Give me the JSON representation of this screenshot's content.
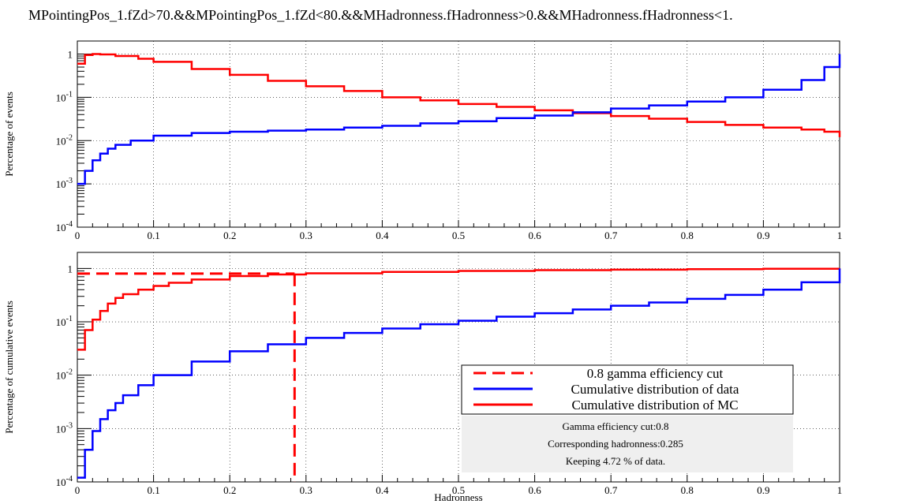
{
  "title": "MPointingPos_1.fZd>70.&&MPointingPos_1.fZd<80.&&MHadronness.fHadronness>0.&&MHadronness.fHadronness<1.",
  "chart_data": [
    {
      "type": "line",
      "ylabel": "Percentage of events",
      "xlim": [
        0,
        1
      ],
      "ylim": [
        0.0001,
        2
      ],
      "yscale": "log",
      "grid": true,
      "x_ticks": [
        "0",
        "0.1",
        "0.2",
        "0.3",
        "0.4",
        "0.5",
        "0.6",
        "0.7",
        "0.8",
        "0.9",
        "1"
      ],
      "y_ticks": [
        "10^-4",
        "10^-3",
        "10^-2",
        "10^-1",
        "1"
      ],
      "series": [
        {
          "color": "#ff0000",
          "x": [
            0,
            0.01,
            0.02,
            0.03,
            0.05,
            0.08,
            0.1,
            0.15,
            0.2,
            0.25,
            0.3,
            0.35,
            0.4,
            0.45,
            0.5,
            0.55,
            0.6,
            0.65,
            0.7,
            0.75,
            0.8,
            0.85,
            0.9,
            0.95,
            0.98,
            1.0
          ],
          "y": [
            0.6,
            0.95,
            1.0,
            0.98,
            0.9,
            0.78,
            0.66,
            0.45,
            0.33,
            0.24,
            0.18,
            0.14,
            0.1,
            0.085,
            0.07,
            0.06,
            0.05,
            0.043,
            0.037,
            0.032,
            0.027,
            0.023,
            0.02,
            0.018,
            0.016,
            0.012
          ]
        },
        {
          "color": "#0000ff",
          "x": [
            0,
            0.01,
            0.02,
            0.03,
            0.04,
            0.05,
            0.07,
            0.1,
            0.15,
            0.2,
            0.25,
            0.3,
            0.35,
            0.4,
            0.45,
            0.5,
            0.55,
            0.6,
            0.65,
            0.7,
            0.75,
            0.8,
            0.85,
            0.9,
            0.95,
            0.98,
            1.0
          ],
          "y": [
            0.001,
            0.002,
            0.0035,
            0.005,
            0.0065,
            0.008,
            0.01,
            0.013,
            0.015,
            0.016,
            0.017,
            0.018,
            0.02,
            0.022,
            0.025,
            0.028,
            0.033,
            0.038,
            0.045,
            0.055,
            0.065,
            0.08,
            0.1,
            0.15,
            0.25,
            0.5,
            1.0
          ]
        }
      ]
    },
    {
      "type": "line",
      "xlabel": "Hadronness",
      "ylabel": "Percentage of cumulative events",
      "xlim": [
        0,
        1
      ],
      "ylim": [
        0.0001,
        2
      ],
      "yscale": "log",
      "grid": true,
      "x_ticks": [
        "0",
        "0.1",
        "0.2",
        "0.3",
        "0.4",
        "0.5",
        "0.6",
        "0.7",
        "0.8",
        "0.9",
        "1"
      ],
      "y_ticks": [
        "10^-4",
        "10^-3",
        "10^-2",
        "10^-1",
        "1"
      ],
      "series": [
        {
          "name": "Cumulative distribution of MC",
          "color": "#ff0000",
          "x": [
            0,
            0.01,
            0.02,
            0.03,
            0.04,
            0.05,
            0.06,
            0.08,
            0.1,
            0.12,
            0.15,
            0.2,
            0.25,
            0.3,
            0.4,
            0.5,
            0.6,
            0.7,
            0.8,
            0.9,
            1.0
          ],
          "y": [
            0.03,
            0.07,
            0.11,
            0.16,
            0.22,
            0.28,
            0.33,
            0.4,
            0.47,
            0.54,
            0.62,
            0.72,
            0.77,
            0.81,
            0.86,
            0.9,
            0.93,
            0.95,
            0.97,
            0.985,
            1.0
          ]
        },
        {
          "name": "Cumulative distribution of data",
          "color": "#0000ff",
          "x": [
            0,
            0.01,
            0.02,
            0.03,
            0.04,
            0.05,
            0.06,
            0.08,
            0.1,
            0.15,
            0.2,
            0.25,
            0.3,
            0.35,
            0.4,
            0.45,
            0.5,
            0.55,
            0.6,
            0.65,
            0.7,
            0.75,
            0.8,
            0.85,
            0.9,
            0.95,
            1.0
          ],
          "y": [
            0.00012,
            0.0004,
            0.0009,
            0.0015,
            0.0022,
            0.003,
            0.0042,
            0.0065,
            0.01,
            0.018,
            0.028,
            0.038,
            0.05,
            0.062,
            0.075,
            0.09,
            0.105,
            0.125,
            0.145,
            0.17,
            0.2,
            0.23,
            0.27,
            0.32,
            0.4,
            0.55,
            1.0
          ]
        },
        {
          "name": "0.8 gamma efficiency cut",
          "color": "#ff0000",
          "dashed": true,
          "cut_x": 0.285,
          "cut_y": 0.8
        }
      ],
      "legend": {
        "placement": "lower-right",
        "entries": [
          {
            "label": "0.8 gamma efficiency cut",
            "color": "#ff0000",
            "dashed": true
          },
          {
            "label": "Cumulative distribution of data",
            "color": "#0000ff",
            "dashed": false
          },
          {
            "label": "Cumulative distribution of MC",
            "color": "#ff0000",
            "dashed": false
          }
        ]
      },
      "stats": [
        "Gamma efficiency cut:0.8",
        "Corresponding hadronness:0.285",
        "Keeping 4.72 % of data."
      ]
    }
  ]
}
